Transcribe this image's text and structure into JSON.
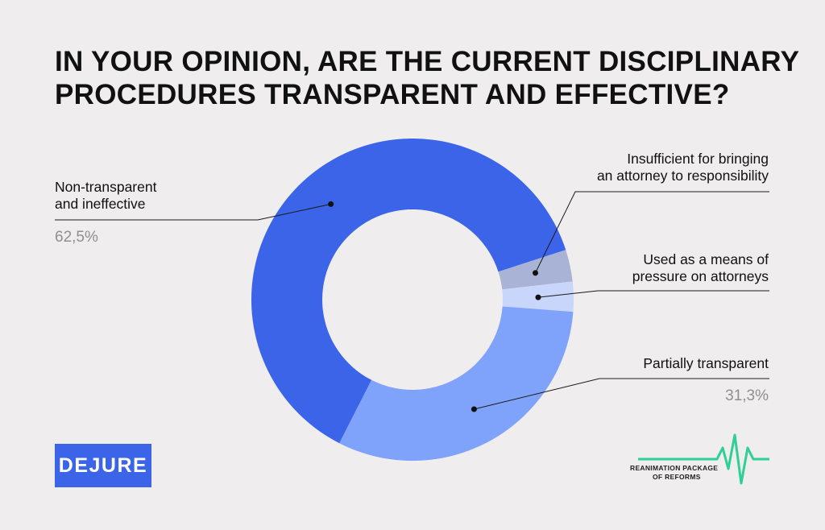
{
  "title_lines": [
    "IN YOUR OPINION, ARE THE CURRENT DISCIPLINARY",
    "PROCEDURES TRANSPARENT AND EFFECTIVE?"
  ],
  "chart_data": {
    "type": "pie",
    "donut": true,
    "title": "IN YOUR OPINION, ARE THE CURRENT DISCIPLINARY PROCEDURES TRANSPARENT AND EFFECTIVE?",
    "slices": [
      {
        "name": "Non-transparent and ineffective",
        "label_lines": [
          "Non-transparent",
          "and ineffective"
        ],
        "value": 62.5,
        "value_label": "62,5%",
        "color": "#3b64e9"
      },
      {
        "name": "Insufficient for bringing an attorney to responsibility",
        "label_lines": [
          "Insufficient for bringing",
          "an attorney to responsibility"
        ],
        "value": 3.2,
        "value_label": "",
        "color": "#a8b3d6"
      },
      {
        "name": "Used as a means of pressure on attorneys",
        "label_lines": [
          "Used as a means of",
          "pressure on attorneys"
        ],
        "value": 3.0,
        "value_label": "",
        "color": "#c8d6fb"
      },
      {
        "name": "Partially transparent",
        "label_lines": [
          "Partially transparent"
        ],
        "value": 31.3,
        "value_label": "31,3%",
        "color": "#7fa2fb"
      }
    ]
  },
  "logos": {
    "dejure": "DEJURE",
    "rpr_lines": [
      "REANIMATION PACKAGE",
      "OF REFORMS"
    ],
    "rpr_color": "#2fcf95"
  }
}
